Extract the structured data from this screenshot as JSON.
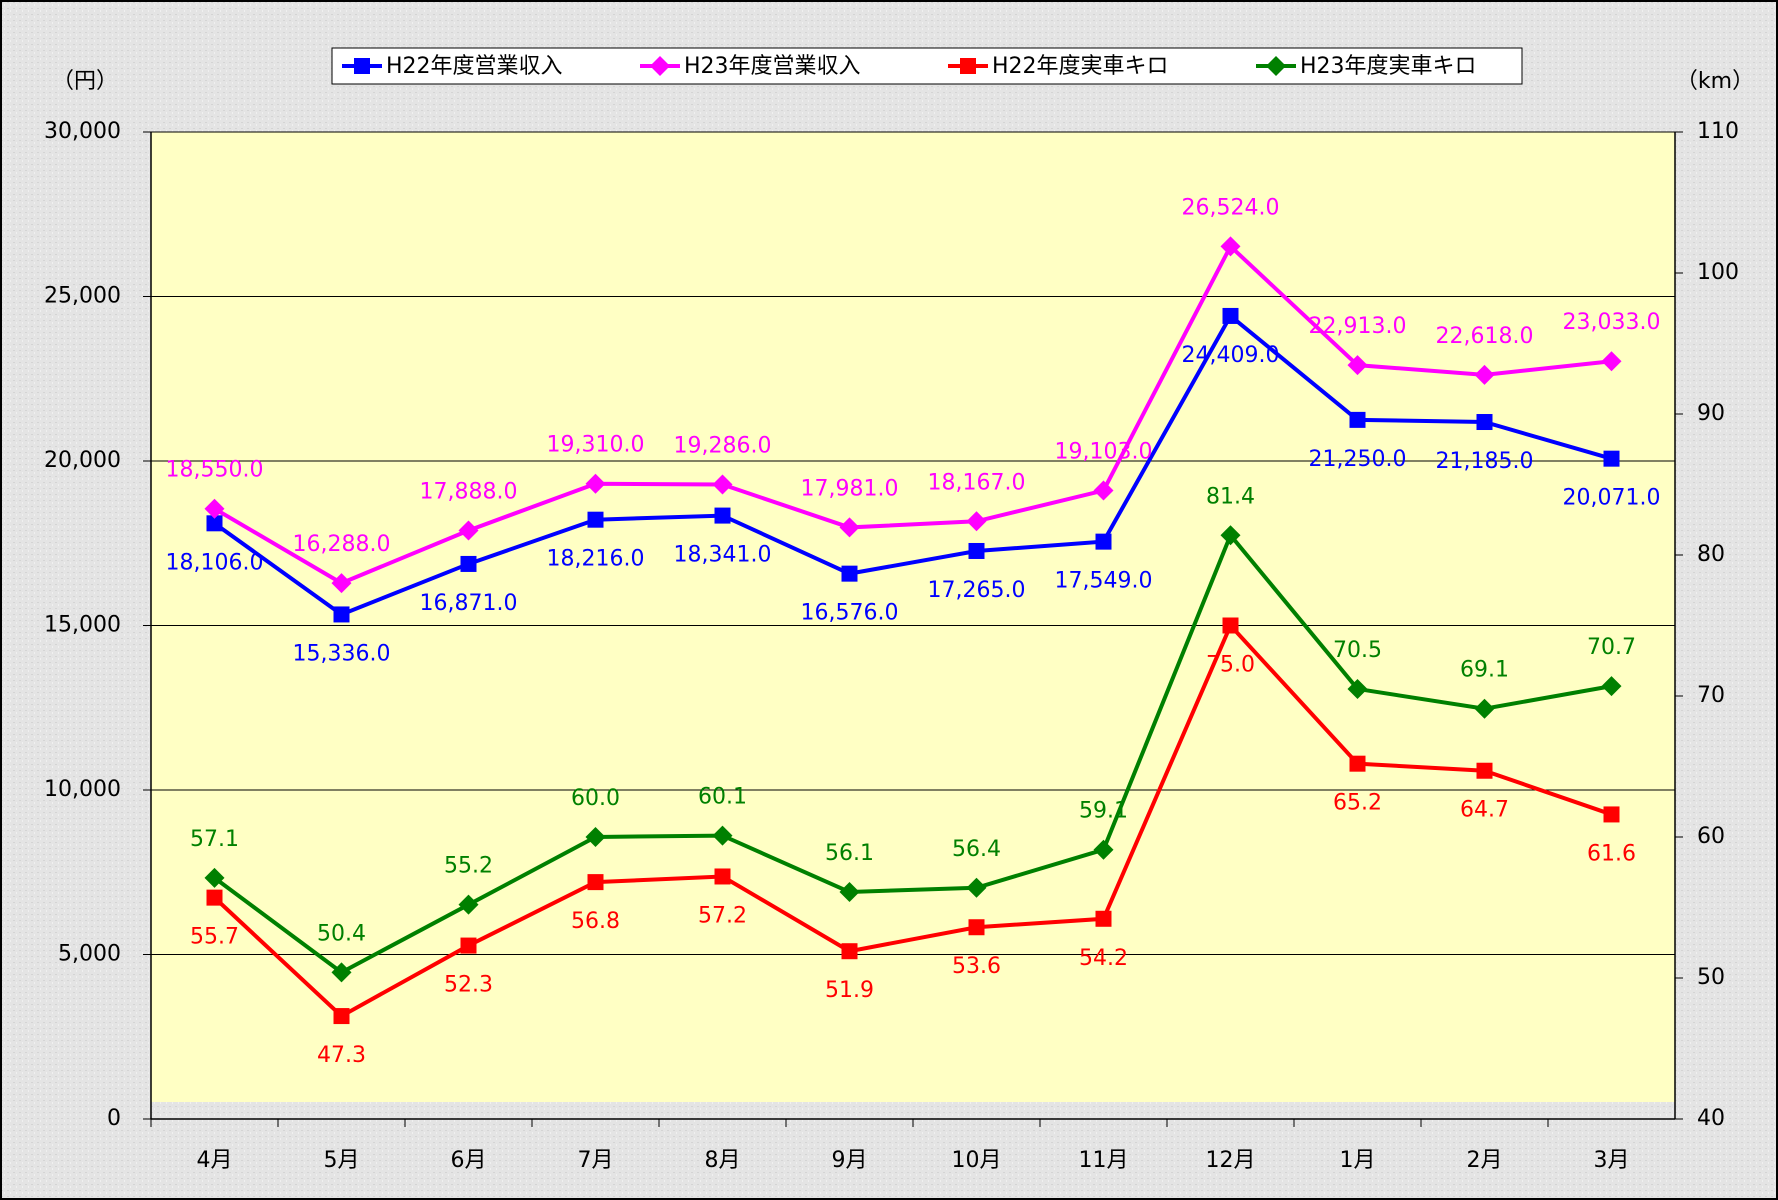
{
  "chart_data": {
    "type": "line",
    "ylabel": "（円）",
    "y2label": "（km）",
    "categories": [
      "4月",
      "5月",
      "6月",
      "7月",
      "8月",
      "9月",
      "10月",
      "11月",
      "12月",
      "1月",
      "2月",
      "3月"
    ],
    "ylim": [
      0,
      30000
    ],
    "yticks": [
      0,
      {
        "value": 5000,
        "label": "5,000"
      },
      {
        "value": 10000,
        "label": "10,000"
      },
      {
        "value": 15000,
        "label": "15,000"
      },
      {
        "value": 20000,
        "label": "20,000"
      },
      {
        "value": 25000,
        "label": "25,000"
      },
      {
        "value": 30000,
        "label": "30,000"
      }
    ],
    "y2lim": [
      40,
      110
    ],
    "y2ticks": [
      40,
      50,
      60,
      70,
      80,
      90,
      100,
      110
    ],
    "grid": true,
    "series": [
      {
        "name": "H22年度営業収入",
        "color": "#0000ff",
        "marker": "square",
        "values": [
          18106,
          15336,
          16871,
          18216,
          18341,
          16576,
          17265,
          17549,
          24409,
          21250,
          21185,
          20071
        ],
        "value_labels": [
          "18,106.0",
          "15,336.0",
          "16,871.0",
          "18,216.0",
          "18,341.0",
          "16,576.0",
          "17,265.0",
          "17,549.0",
          "24,409.0",
          "21,250.0",
          "21,185.0",
          "20,071.0"
        ]
      },
      {
        "name": "H23年度営業収入",
        "color": "#ff00ff",
        "marker": "diamond",
        "values": [
          18550,
          16288,
          17888,
          19310,
          19286,
          17981,
          18167,
          19103,
          26524,
          22913,
          22618,
          23033
        ],
        "value_labels": [
          "18,550.0",
          "16,288.0",
          "17,888.0",
          "19,310.0",
          "19,286.0",
          "17,981.0",
          "18,167.0",
          "19,103.0",
          "26,524.0",
          "22,913.0",
          "22,618.0",
          "23,033.0"
        ]
      },
      {
        "name": "H22年度実車キロ",
        "color": "#ff0000",
        "marker": "square",
        "axis": "y2",
        "values": [
          55.7,
          47.3,
          52.3,
          56.8,
          57.2,
          51.9,
          53.6,
          54.2,
          75.0,
          65.2,
          64.7,
          61.6
        ],
        "value_labels": [
          "55.7",
          "47.3",
          "52.3",
          "56.8",
          "57.2",
          "51.9",
          "53.6",
          "54.2",
          "75.0",
          "65.2",
          "64.7",
          "61.6"
        ]
      },
      {
        "name": "H23年度実車キロ",
        "color": "#008000",
        "marker": "diamond",
        "axis": "y2",
        "values": [
          57.1,
          50.4,
          55.2,
          60.0,
          60.1,
          56.1,
          56.4,
          59.1,
          81.4,
          70.5,
          69.1,
          70.7
        ],
        "value_labels": [
          "57.1",
          "50.4",
          "55.2",
          "60.0",
          "60.1",
          "56.1",
          "56.4",
          "59.1",
          "81.4",
          "70.5",
          "69.1",
          "70.7"
        ]
      }
    ]
  }
}
